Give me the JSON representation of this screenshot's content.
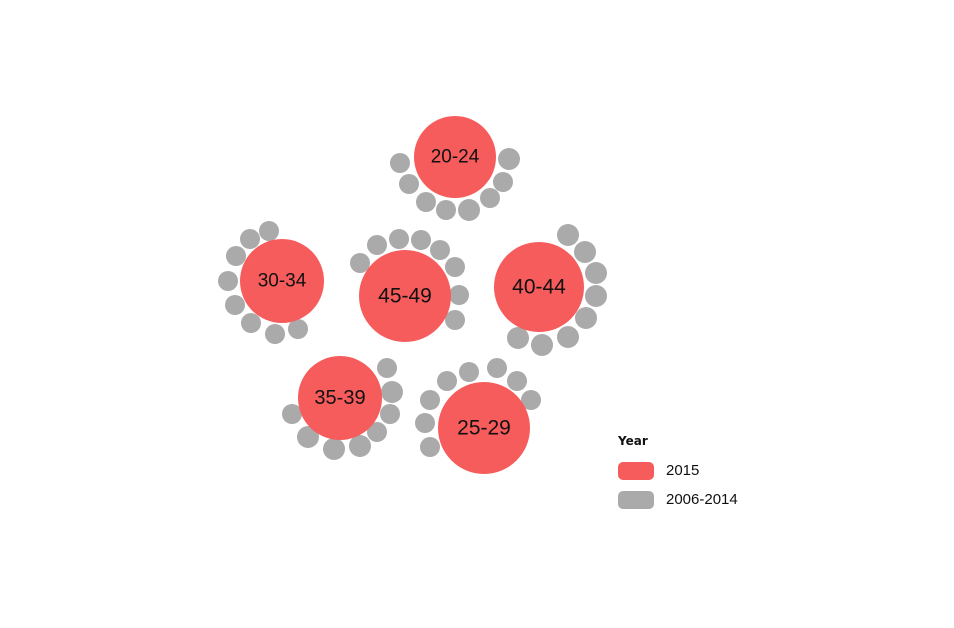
{
  "chart_data": {
    "type": "bubble-cluster",
    "colors": {
      "current": "#f75c5c",
      "past": "#aaaaaa"
    },
    "legend": {
      "title": "Year",
      "placement": "bottom-right",
      "items": [
        {
          "label": "2015",
          "color": "#f75c5c"
        },
        {
          "label": "2006-2014",
          "color": "#aaaaaa"
        }
      ]
    },
    "clusters": [
      {
        "label": "20-24",
        "past_count": 9
      },
      {
        "label": "30-34",
        "past_count": 9
      },
      {
        "label": "45-49",
        "past_count": 10
      },
      {
        "label": "40-44",
        "past_count": 10
      },
      {
        "label": "35-39",
        "past_count": 9
      },
      {
        "label": "25-29",
        "past_count": 10
      }
    ]
  }
}
